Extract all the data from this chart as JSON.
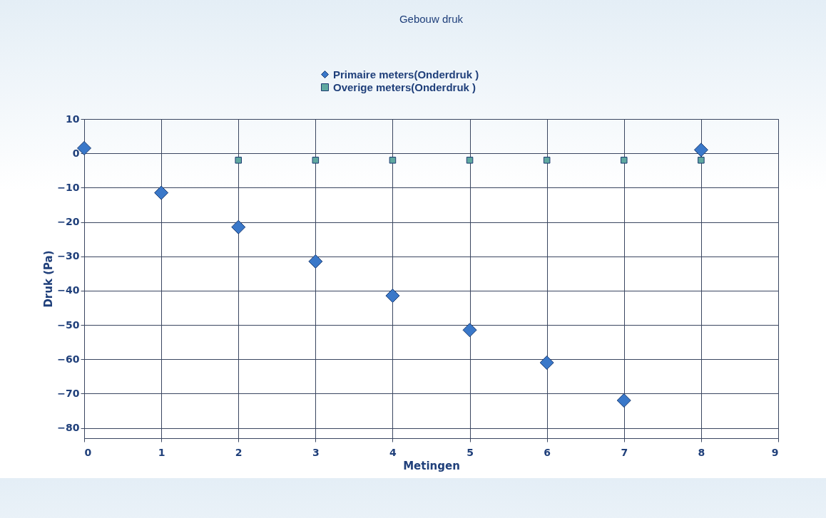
{
  "chart_data": {
    "type": "scatter",
    "title": "Gebouw druk",
    "xlabel": "Metingen",
    "ylabel": "Druk (Pa)",
    "x": [
      0,
      1,
      2,
      3,
      4,
      5,
      6,
      7,
      8
    ],
    "series": [
      {
        "name": "Primaire meters(Onderdruk )",
        "color": "#3a78c9",
        "marker": "diamond",
        "values": [
          1.5,
          -11.5,
          -21.5,
          -31.5,
          -41.5,
          -51.5,
          -61,
          -72,
          1
        ]
      },
      {
        "name": "Overige meters(Onderdruk )",
        "color": "#5fa8a0",
        "marker": "square",
        "x": [
          2,
          3,
          4,
          5,
          6,
          7,
          8
        ],
        "values": [
          -2,
          -2,
          -2,
          -2,
          -2,
          -2,
          -2
        ]
      }
    ],
    "xlim": [
      0,
      9
    ],
    "xticks": [
      0,
      1,
      2,
      3,
      4,
      5,
      6,
      7,
      8,
      9
    ],
    "ylim": [
      -83,
      10
    ],
    "yticks": [
      10,
      0,
      -10,
      -20,
      -30,
      -40,
      -50,
      -60,
      -70,
      -80
    ],
    "grid": true,
    "legend": "top"
  }
}
